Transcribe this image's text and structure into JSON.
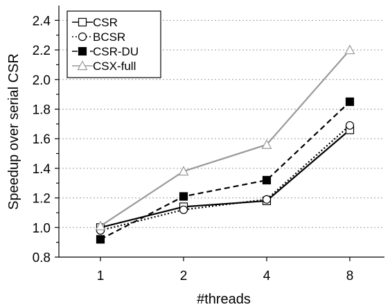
{
  "chart_data": {
    "type": "line",
    "categories": [
      "1",
      "2",
      "4",
      "8"
    ],
    "xlabel": "#threads",
    "ylabel": "Speedup over serial CSR",
    "ylim": [
      0.8,
      2.5
    ],
    "yticks": [
      "0.8",
      "1.0",
      "1.2",
      "1.4",
      "1.6",
      "1.8",
      "2.0",
      "2.2",
      "2.4"
    ],
    "ytick_values": [
      0.8,
      1.0,
      1.2,
      1.4,
      1.6,
      1.8,
      2.0,
      2.2,
      2.4
    ],
    "grid": "horizontal dotted",
    "legend_position": "top-left",
    "series": [
      {
        "name": "CSR",
        "values": [
          1.0,
          1.14,
          1.18,
          1.66
        ],
        "color": "#000000",
        "dash": "solid",
        "marker": "square-open"
      },
      {
        "name": "BCSR",
        "values": [
          0.98,
          1.12,
          1.19,
          1.69
        ],
        "color": "#000000",
        "dash": "dotted",
        "marker": "circle-open"
      },
      {
        "name": "CSR-DU",
        "values": [
          0.92,
          1.21,
          1.32,
          1.85
        ],
        "color": "#000000",
        "dash": "dashed",
        "marker": "square-filled"
      },
      {
        "name": "CSX-full",
        "values": [
          1.01,
          1.38,
          1.56,
          2.2
        ],
        "color": "#999999",
        "dash": "solid",
        "marker": "triangle-open"
      }
    ]
  }
}
